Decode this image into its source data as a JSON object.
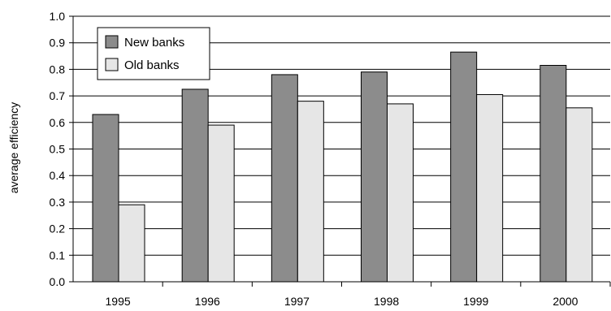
{
  "chart_data": {
    "type": "bar",
    "title": "",
    "xlabel": "",
    "ylabel": "average efficiency",
    "ylim": [
      0,
      1.0
    ],
    "yticks": [
      "0.0",
      "0.1",
      "0.2",
      "0.3",
      "0.4",
      "0.5",
      "0.6",
      "0.7",
      "0.8",
      "0.9",
      "1.0"
    ],
    "categories": [
      "1995",
      "1996",
      "1997",
      "1998",
      "1999",
      "2000"
    ],
    "series": [
      {
        "name": "New banks",
        "color": "#8c8c8c",
        "values": [
          0.63,
          0.725,
          0.78,
          0.79,
          0.865,
          0.815
        ]
      },
      {
        "name": "Old banks",
        "color": "#e6e6e6",
        "values": [
          0.29,
          0.59,
          0.68,
          0.67,
          0.705,
          0.655
        ]
      }
    ],
    "grid": true,
    "legend": "top-left"
  }
}
